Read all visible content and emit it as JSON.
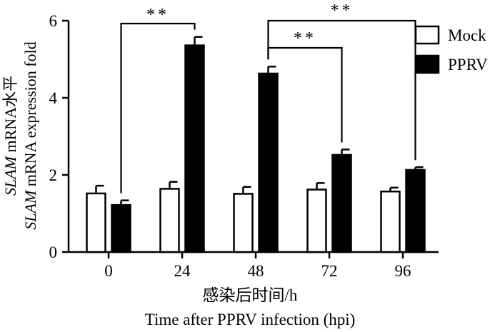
{
  "chart_data": {
    "type": "bar",
    "categories": [
      "0",
      "24",
      "48",
      "72",
      "96"
    ],
    "series": [
      {
        "name": "Mock",
        "values": [
          1.52,
          1.64,
          1.51,
          1.62,
          1.57
        ],
        "errors": [
          0.2,
          0.18,
          0.18,
          0.17,
          0.1
        ],
        "fill": "#ffffff"
      },
      {
        "name": "PPRV",
        "values": [
          1.22,
          5.36,
          4.63,
          2.52,
          2.13
        ],
        "errors": [
          0.12,
          0.22,
          0.18,
          0.14,
          0.07
        ],
        "fill": "#000000"
      }
    ],
    "ylim": [
      0,
      6
    ],
    "yticks": [
      "0",
      "2",
      "4",
      "6"
    ],
    "ylabel_line1_italic": "SLAM",
    "ylabel_line1_rest": " mRNA水平",
    "ylabel_line2_italic": "SLAM",
    "ylabel_line2_rest": " mRNA expression fold",
    "xlabel_line1": "感染后时间/h",
    "xlabel_line2": "Time after PPRV infection (hpi)",
    "legend": {
      "placement": "top-right",
      "items": [
        "Mock",
        "PPRV"
      ]
    },
    "significance": [
      {
        "from": "0",
        "to": "24",
        "label": "**"
      },
      {
        "from": "48",
        "to": "72",
        "label": "**"
      },
      {
        "from": "48",
        "to": "96",
        "label": "**"
      }
    ],
    "grid": false
  }
}
